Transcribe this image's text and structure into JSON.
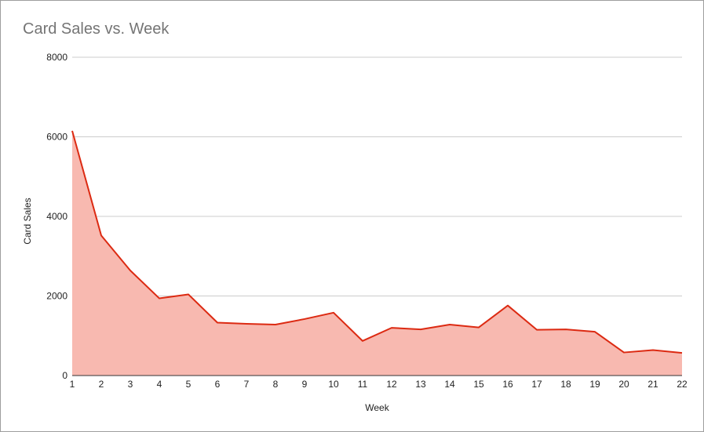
{
  "chart_data": {
    "type": "area",
    "title": "Card Sales vs. Week",
    "xlabel": "Week",
    "ylabel": "Card Sales",
    "x": [
      1,
      2,
      3,
      4,
      5,
      6,
      7,
      8,
      9,
      10,
      11,
      12,
      13,
      14,
      15,
      16,
      17,
      18,
      19,
      20,
      21,
      22
    ],
    "x_tick_labels": [
      "1",
      "2",
      "3",
      "4",
      "5",
      "6",
      "7",
      "8",
      "9",
      "10",
      "11",
      "12",
      "13",
      "14",
      "15",
      "16",
      "17",
      "18",
      "19",
      "20",
      "21",
      "22"
    ],
    "series": [
      {
        "values": [
          6150,
          3520,
          2640,
          1940,
          2040,
          1330,
          1300,
          1280,
          1420,
          1580,
          870,
          1200,
          1160,
          1280,
          1210,
          1760,
          1150,
          1160,
          1100,
          580,
          640,
          570
        ]
      }
    ],
    "ylim": [
      0,
      8000
    ],
    "y_ticks": [
      0,
      2000,
      4000,
      6000,
      8000
    ],
    "y_tick_labels": [
      "0",
      "2000",
      "4000",
      "6000",
      "8000"
    ],
    "grid": true,
    "legend": "none",
    "colors": {
      "line": "#dc2a12",
      "fill": "#f8b9b0",
      "grid": "#cccccc",
      "baseline": "#333333",
      "title": "#757575"
    }
  }
}
